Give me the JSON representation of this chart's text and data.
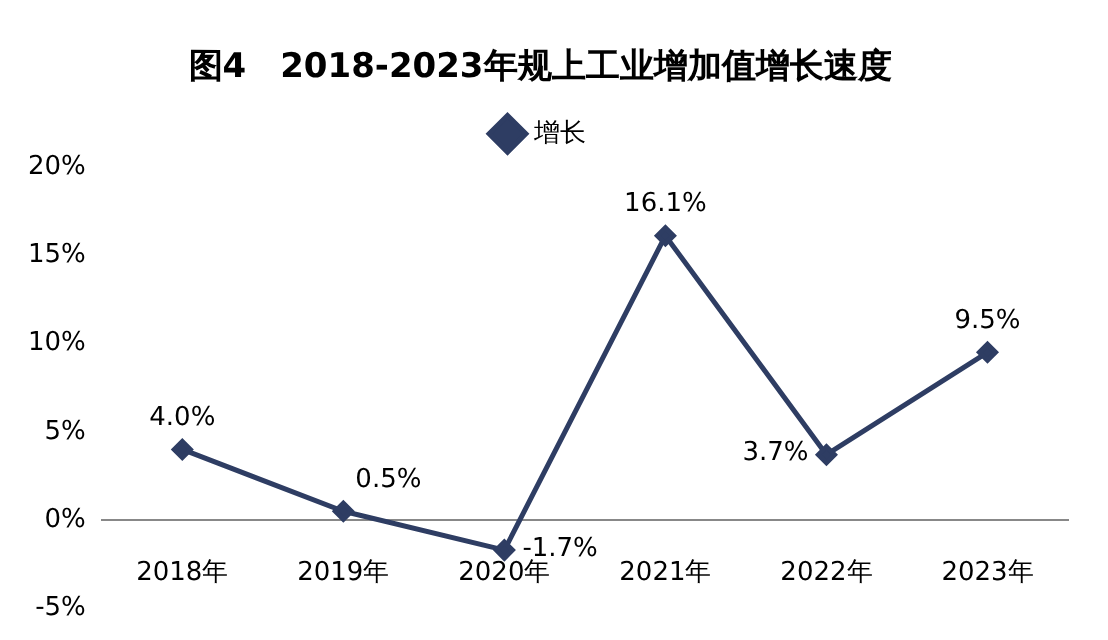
{
  "chart_data": {
    "type": "line",
    "title": "图4　2018-2023年规上工业增加值增长速度",
    "categories": [
      "2018年",
      "2019年",
      "2020年",
      "2021年",
      "2022年",
      "2023年"
    ],
    "series": [
      {
        "name": "增长",
        "color": "#2e3d63",
        "values": [
          4.0,
          0.5,
          -1.7,
          16.1,
          3.7,
          9.5
        ],
        "value_labels": [
          "4.0%",
          "0.5%",
          "-1.7%",
          "16.1%",
          "3.7%",
          "9.5%"
        ]
      }
    ],
    "ylim": [
      -5,
      20
    ],
    "yticks": [
      {
        "value": -5,
        "label": "-5%"
      },
      {
        "value": 0,
        "label": "0%"
      },
      {
        "value": 5,
        "label": "5%"
      },
      {
        "value": 10,
        "label": "10%"
      },
      {
        "value": 15,
        "label": "15%"
      },
      {
        "value": 20,
        "label": "20%"
      }
    ],
    "grid": false,
    "legend": "top",
    "marker": "diamond",
    "line_style": "solid"
  }
}
